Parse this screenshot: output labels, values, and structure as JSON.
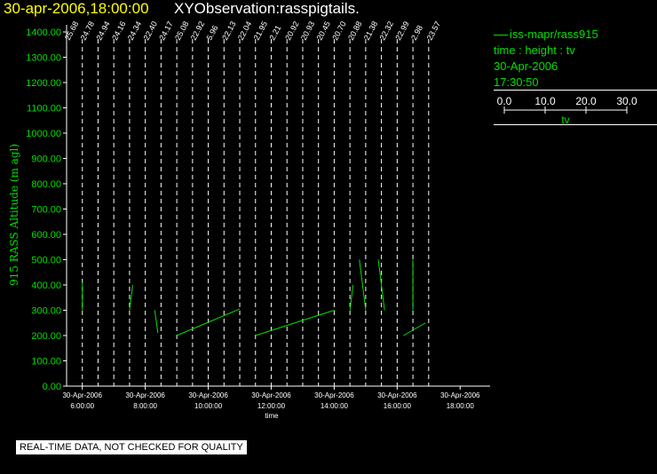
{
  "header": {
    "datetime": "30-apr-2006,18:00:00",
    "observation": "XYObservation:rasspigtails."
  },
  "legend": {
    "series_line": "iss-mapr/rass915",
    "axes_line": "time : height : tv",
    "date_line": "30-Apr-2006",
    "time_line": "17:30:50",
    "scale_ticks": [
      "0.0",
      "10.0",
      "20.0",
      "30.0"
    ],
    "scale_label": "tv",
    "scale_range": [
      0,
      30
    ],
    "color": "#00e000"
  },
  "disclaimer": "REAL-TIME DATA, NOT CHECKED FOR QUALITY",
  "chart_data": {
    "type": "line",
    "xlabel": "time",
    "ylabel": "915 RASS Altitude (m agl)",
    "xlim": [
      5.5,
      18.5
    ],
    "ylim": [
      0,
      1400
    ],
    "y_ticks": [
      "0.00",
      "100.00",
      "200.00",
      "300.00",
      "400.00",
      "500.00",
      "600.00",
      "700.00",
      "800.00",
      "900.00",
      "1000.00",
      "1100.00",
      "1200.00",
      "1300.00",
      "1400.00"
    ],
    "x_ticks": [
      {
        "x": 6,
        "date": "30-Apr-2006",
        "time": "6:00:00"
      },
      {
        "x": 8,
        "date": "30-Apr-2006",
        "time": "8:00:00"
      },
      {
        "x": 10,
        "date": "30-Apr-2006",
        "time": "10:00:00"
      },
      {
        "x": 12,
        "date": "30-Apr-2006",
        "time": "12:00:00"
      },
      {
        "x": 14,
        "date": "30-Apr-2006",
        "time": "14:00:00"
      },
      {
        "x": 16,
        "date": "30-Apr-2006",
        "time": "16:00:00"
      },
      {
        "x": 18,
        "date": "30-Apr-2006",
        "time": "18:00:00"
      }
    ],
    "profiles": [
      {
        "x": 5.5,
        "label": "25.68"
      },
      {
        "x": 6.0,
        "label": "24.78"
      },
      {
        "x": 6.5,
        "label": "24.94"
      },
      {
        "x": 7.0,
        "label": "24.16"
      },
      {
        "x": 7.5,
        "label": "24.34"
      },
      {
        "x": 8.0,
        "label": "22.40"
      },
      {
        "x": 8.5,
        "label": "24.17"
      },
      {
        "x": 9.0,
        "label": "25.08"
      },
      {
        "x": 9.5,
        "label": "22.92"
      },
      {
        "x": 10.0,
        "label": "5.96"
      },
      {
        "x": 10.5,
        "label": "22.13"
      },
      {
        "x": 11.0,
        "label": "22.04"
      },
      {
        "x": 11.5,
        "label": "21.95"
      },
      {
        "x": 12.0,
        "label": "2.21"
      },
      {
        "x": 12.5,
        "label": "20.92"
      },
      {
        "x": 13.0,
        "label": "20.93"
      },
      {
        "x": 13.5,
        "label": "20.45"
      },
      {
        "x": 14.0,
        "label": "20.70"
      },
      {
        "x": 14.5,
        "label": "20.88"
      },
      {
        "x": 15.0,
        "label": "21.38"
      },
      {
        "x": 15.5,
        "label": "22.32"
      },
      {
        "x": 16.0,
        "label": "22.99"
      },
      {
        "x": 16.5,
        "label": "2.98"
      },
      {
        "x": 17.0,
        "label": "23.57"
      }
    ],
    "series": [
      {
        "name": "iss-mapr/rass915",
        "segments": [
          [
            [
              6.0,
              300
            ],
            [
              6.0,
              410
            ]
          ],
          [
            [
              7.5,
              300
            ],
            [
              7.6,
              400
            ]
          ],
          [
            [
              8.3,
              300
            ],
            [
              8.4,
              210
            ]
          ],
          [
            [
              9.0,
              200
            ],
            [
              11.0,
              305
            ]
          ],
          [
            [
              11.5,
              200
            ],
            [
              14.0,
              300
            ]
          ],
          [
            [
              14.5,
              300
            ],
            [
              14.6,
              400
            ]
          ],
          [
            [
              14.8,
              500
            ],
            [
              15.0,
              300
            ]
          ],
          [
            [
              15.4,
              500
            ],
            [
              15.6,
              300
            ]
          ],
          [
            [
              16.2,
              200
            ],
            [
              16.9,
              250
            ]
          ],
          [
            [
              16.5,
              300
            ],
            [
              16.5,
              500
            ]
          ]
        ]
      }
    ]
  }
}
